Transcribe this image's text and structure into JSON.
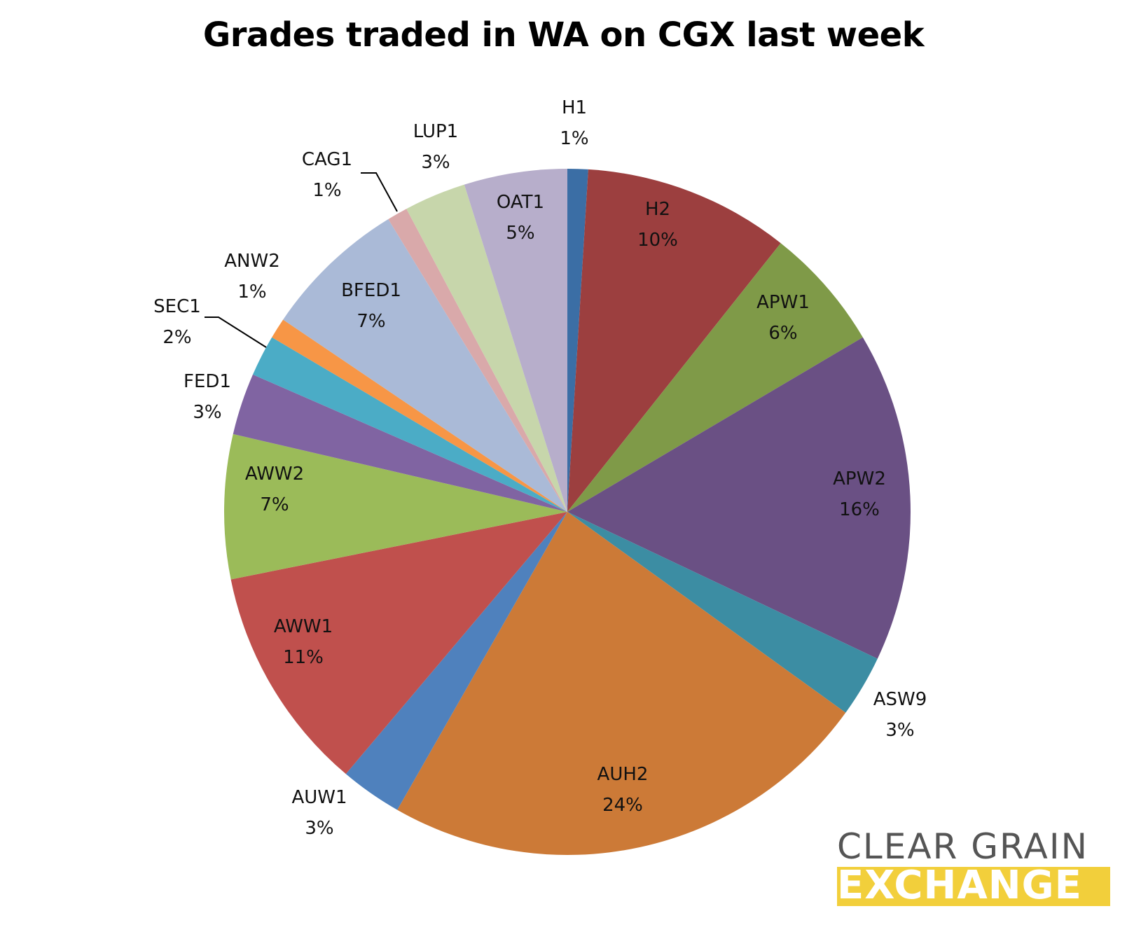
{
  "chart_data": {
    "type": "pie",
    "title": "Grades traded in WA on CGX last week",
    "slices": [
      {
        "label": "H1",
        "value": 1,
        "pct_text": "1%",
        "color": "#3b6ea5"
      },
      {
        "label": "H2",
        "value": 10,
        "pct_text": "10%",
        "color": "#9c3f3f"
      },
      {
        "label": "APW1",
        "value": 6,
        "pct_text": "6%",
        "color": "#7f9a48"
      },
      {
        "label": "APW2",
        "value": 16,
        "pct_text": "16%",
        "color": "#6a5084"
      },
      {
        "label": "ASW9",
        "value": 3,
        "pct_text": "3%",
        "color": "#3c8da3"
      },
      {
        "label": "AUH2",
        "value": 24,
        "pct_text": "24%",
        "color": "#cc7a37"
      },
      {
        "label": "AUW1",
        "value": 3,
        "pct_text": "3%",
        "color": "#4f81bd"
      },
      {
        "label": "AWW1",
        "value": 11,
        "pct_text": "11%",
        "color": "#c0504d"
      },
      {
        "label": "AWW2",
        "value": 7,
        "pct_text": "7%",
        "color": "#9bbb59"
      },
      {
        "label": "FED1",
        "value": 3,
        "pct_text": "3%",
        "color": "#8064a2"
      },
      {
        "label": "SEC1",
        "value": 2,
        "pct_text": "2%",
        "color": "#4bacc6"
      },
      {
        "label": "ANW2",
        "value": 1,
        "pct_text": "1%",
        "color": "#f79646"
      },
      {
        "label": "BFED1",
        "value": 7,
        "pct_text": "7%",
        "color": "#aabad7"
      },
      {
        "label": "CAG1",
        "value": 1,
        "pct_text": "1%",
        "color": "#d9a9aa"
      },
      {
        "label": "LUP1",
        "value": 3,
        "pct_text": "3%",
        "color": "#c7d6ab"
      },
      {
        "label": "OAT1",
        "value": 5,
        "pct_text": "5%",
        "color": "#b7aecb"
      }
    ]
  },
  "logo": {
    "line1": "CLEAR GRAIN",
    "line2": "EXCHANGE",
    "accent_color": "#f2cf3b"
  }
}
